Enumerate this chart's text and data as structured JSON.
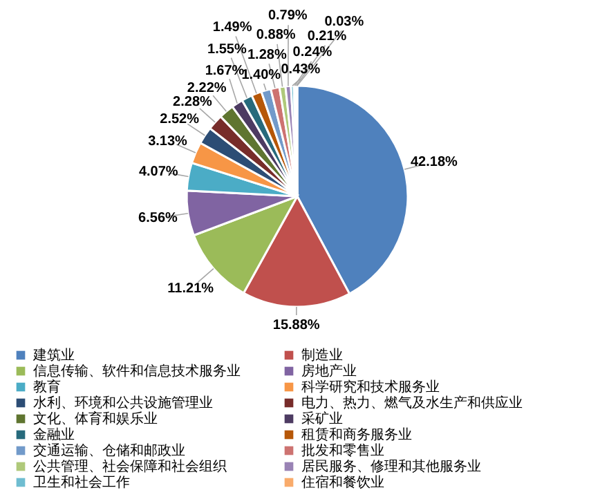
{
  "chart_data": {
    "type": "pie",
    "categories": [
      "建筑业",
      "制造业",
      "信息传输、软件和信息技术服务业",
      "房地产业",
      "教育",
      "科学研究和技术服务业",
      "水利、环境和公共设施管理业",
      "电力、热力、燃气及水生产和供应业",
      "文化、体育和娱乐业",
      "采矿业",
      "金融业",
      "租赁和商务服务业",
      "交通运输、仓储和邮政业",
      "批发和零售业",
      "公共管理、社会保障和社会组织",
      "居民服务、修理和其他服务业",
      "卫生和社会工作",
      "住宿和餐饮业",
      null,
      null
    ],
    "values": [
      42.18,
      15.88,
      11.21,
      6.56,
      4.07,
      3.13,
      2.52,
      2.28,
      2.22,
      1.67,
      1.55,
      1.49,
      1.4,
      1.28,
      0.88,
      0.79,
      0.43,
      0.24,
      0.21,
      0.03
    ],
    "value_labels": [
      "42.18%",
      "15.88%",
      "11.21%",
      "6.56%",
      "4.07%",
      "3.13%",
      "2.52%",
      "2.28%",
      "2.22%",
      "1.67%",
      "1.55%",
      "1.49%",
      "1.40%",
      "1.28%",
      "0.88%",
      "0.79%",
      "0.43%",
      "0.24%",
      "0.21%",
      "0.03%"
    ],
    "colors": [
      "#4f81bd",
      "#c0504d",
      "#9bbb59",
      "#8064a2",
      "#4bacc6",
      "#f79646",
      "#2c4d75",
      "#772c2a",
      "#5f7530",
      "#4d3b62",
      "#276a7c",
      "#b65708",
      "#729aca",
      "#cd7371",
      "#afc97a",
      "#9983b5",
      "#6fbdd1",
      "#f9ab6b",
      "#3a679c",
      "#9e413e"
    ],
    "legend": "bottom"
  }
}
